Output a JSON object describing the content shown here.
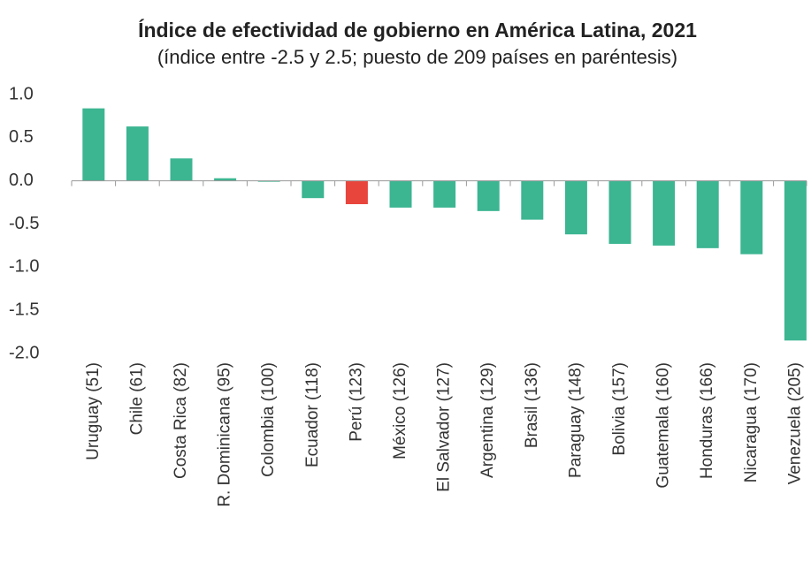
{
  "chart_data": {
    "type": "bar",
    "title": "Índice de efectividad de gobierno en América Latina, 2021",
    "subtitle": "(índice entre -2.5 y 2.5; puesto de 209 países en paréntesis)",
    "categories": [
      "Uruguay (51)",
      "Chile (61)",
      "Costa Rica (82)",
      "R. Dominicana (95)",
      "Colombia (100)",
      "Ecuador (118)",
      "Perú (123)",
      "México (126)",
      "El Salvador (127)",
      "Argentina (129)",
      "Brasil (136)",
      "Paraguay (148)",
      "Bolivia (157)",
      "Guatemala (160)",
      "Honduras (166)",
      "Nicaragua (170)",
      "Venezuela (205)"
    ],
    "values": [
      0.84,
      0.63,
      0.26,
      0.03,
      -0.01,
      -0.2,
      -0.27,
      -0.31,
      -0.31,
      -0.35,
      -0.45,
      -0.62,
      -0.73,
      -0.75,
      -0.78,
      -0.85,
      -1.85
    ],
    "colors": [
      "#3cb591",
      "#3cb591",
      "#3cb591",
      "#3cb591",
      "#3cb591",
      "#3cb591",
      "#e8453c",
      "#3cb591",
      "#3cb591",
      "#3cb591",
      "#3cb591",
      "#3cb591",
      "#3cb591",
      "#3cb591",
      "#3cb591",
      "#3cb591",
      "#3cb591"
    ],
    "ylim": [
      -2,
      1
    ],
    "yticks": [
      {
        "value": 1,
        "label": "1.0"
      },
      0.5,
      {
        "value": 0,
        "label": "0.0"
      },
      -0.5,
      {
        "value": -1,
        "label": "-1.0"
      },
      -1.5,
      {
        "value": -2,
        "label": "-2.0"
      }
    ],
    "grid": false
  }
}
